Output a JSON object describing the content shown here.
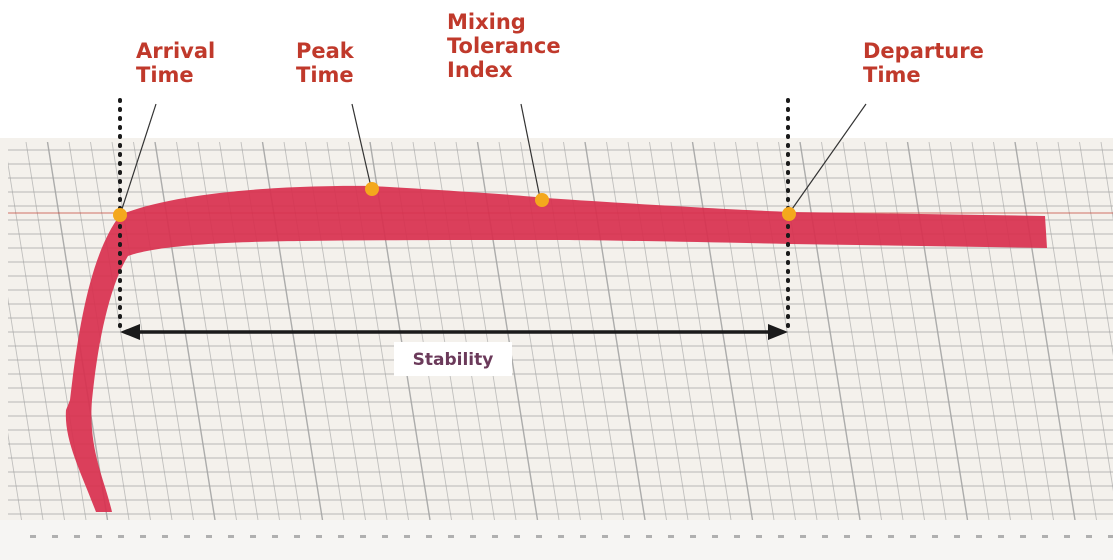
{
  "labels": {
    "arrival": [
      "Arrival",
      "Time"
    ],
    "peak": [
      "Peak",
      "Time"
    ],
    "mti": [
      "Mixing",
      "Tolerance",
      "Index"
    ],
    "departure": [
      "Departure",
      "Time"
    ]
  },
  "stability": "Stability",
  "colors": {
    "label_text": "#c0392b",
    "stability_text": "#6b3a5a",
    "marker": "#f4a81d",
    "curve": "#d8304e",
    "grid": "#a5a5a5",
    "arrow": "#1a1a1a"
  }
}
